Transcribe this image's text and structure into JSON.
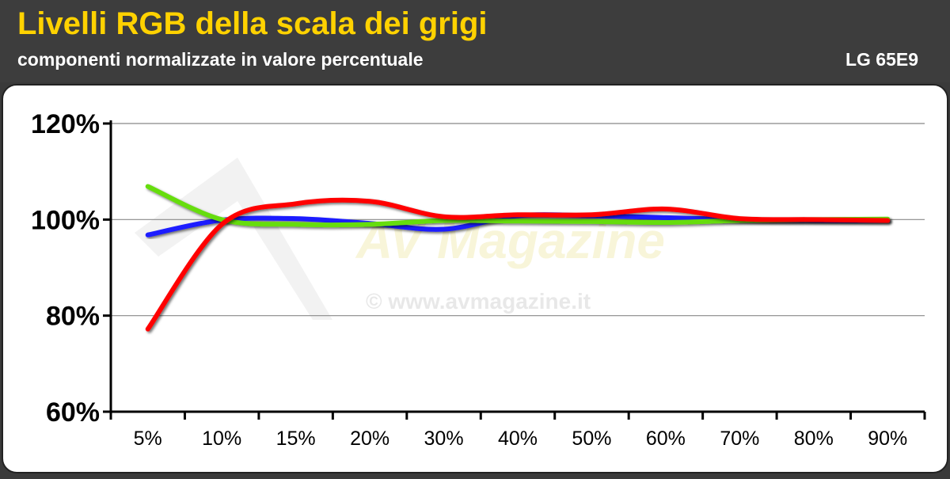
{
  "header": {
    "title": "Livelli RGB della scala dei grigi",
    "subtitle": "componenti normalizzate in valore percentuale",
    "model": "LG 65E9"
  },
  "watermark": {
    "brand": "AV Magazine",
    "url": "© www.avmagazine.it"
  },
  "colors": {
    "title": "#ffd200",
    "header_bg": "#3d3d3d",
    "panel_bg": "#ffffff",
    "red": "#ff0000",
    "green": "#66dd11",
    "blue": "#1a1aff"
  },
  "chart_data": {
    "type": "line",
    "title": "Livelli RGB della scala dei grigi",
    "subtitle": "componenti normalizzate in valore percentuale",
    "categories": [
      "5%",
      "10%",
      "15%",
      "20%",
      "30%",
      "40%",
      "50%",
      "60%",
      "70%",
      "80%",
      "90%"
    ],
    "ylim": [
      60,
      120
    ],
    "yticks": [
      "60%",
      "80%",
      "100%",
      "120%"
    ],
    "ytick_values": [
      60,
      80,
      100,
      120
    ],
    "grid": true,
    "series": [
      {
        "color": "blue",
        "values": [
          96.8,
          99.9,
          100.2,
          99.2,
          98.0,
          100.8,
          100.8,
          100.4,
          100.0,
          99.8,
          99.8
        ]
      },
      {
        "color": "green",
        "values": [
          106.9,
          100.0,
          99.0,
          99.0,
          99.8,
          99.7,
          99.6,
          99.4,
          99.8,
          100.0,
          100.1
        ]
      },
      {
        "color": "red",
        "values": [
          77.2,
          99.0,
          103.3,
          103.8,
          100.6,
          101.0,
          101.0,
          102.2,
          100.2,
          100.0,
          99.8
        ]
      }
    ]
  }
}
